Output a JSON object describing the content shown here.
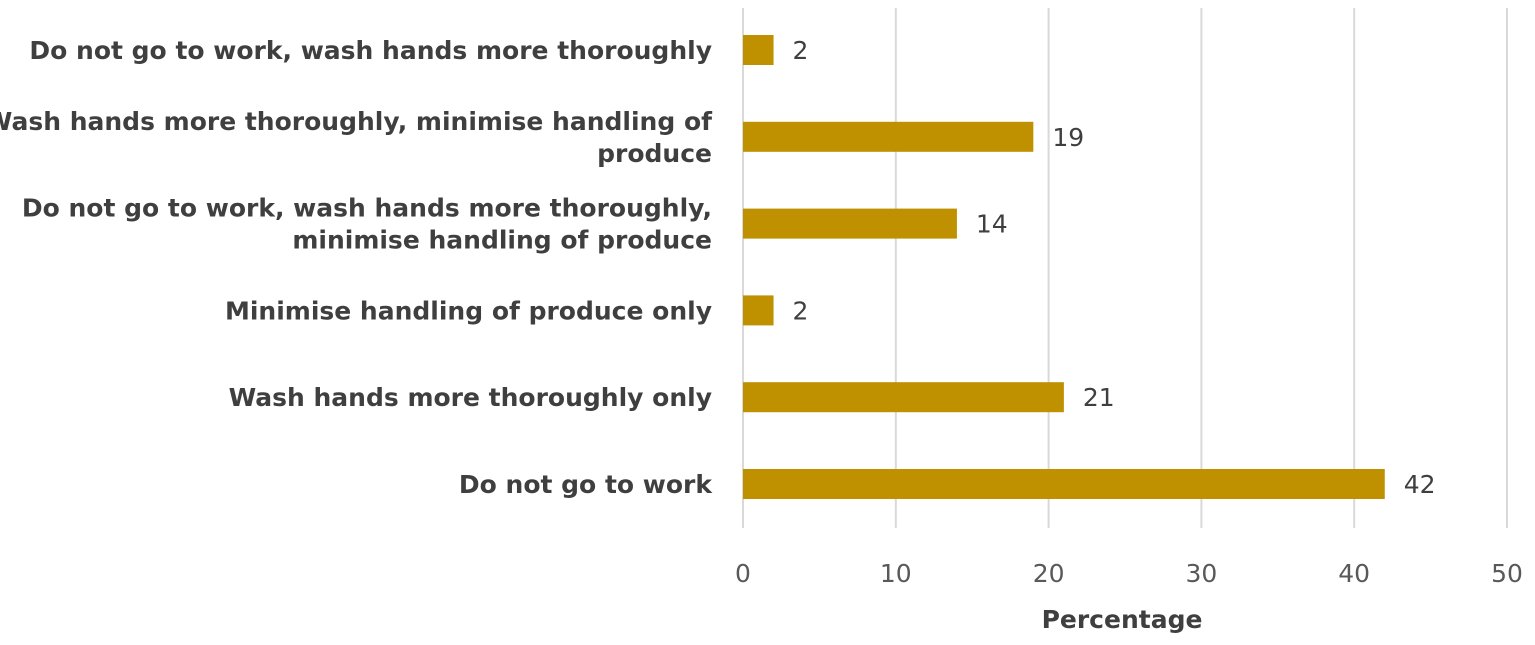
{
  "chart_data": {
    "type": "bar",
    "orientation": "horizontal",
    "categories": [
      [
        "Do not go to work, wash hands more thoroughly"
      ],
      [
        "Wash hands more thoroughly, minimise handling of",
        "produce"
      ],
      [
        "Do not go to work, wash hands more thoroughly,",
        "minimise handling of produce"
      ],
      [
        "Minimise handling of produce only"
      ],
      [
        "Wash hands more thoroughly only"
      ],
      [
        "Do not go to work"
      ]
    ],
    "values": [
      2,
      19,
      14,
      2,
      21,
      42
    ],
    "data_labels": [
      "2",
      "19",
      "14",
      "2",
      "21",
      "42"
    ],
    "xlabel": "Percentage",
    "xlim": [
      0,
      50
    ],
    "xticks": [
      0,
      10,
      20,
      30,
      40,
      50
    ],
    "xtick_labels": [
      "0",
      "10",
      "20",
      "30",
      "40",
      "50"
    ],
    "grid": "vertical",
    "legend": "none",
    "colors": {
      "bar": "#BF9000"
    }
  }
}
